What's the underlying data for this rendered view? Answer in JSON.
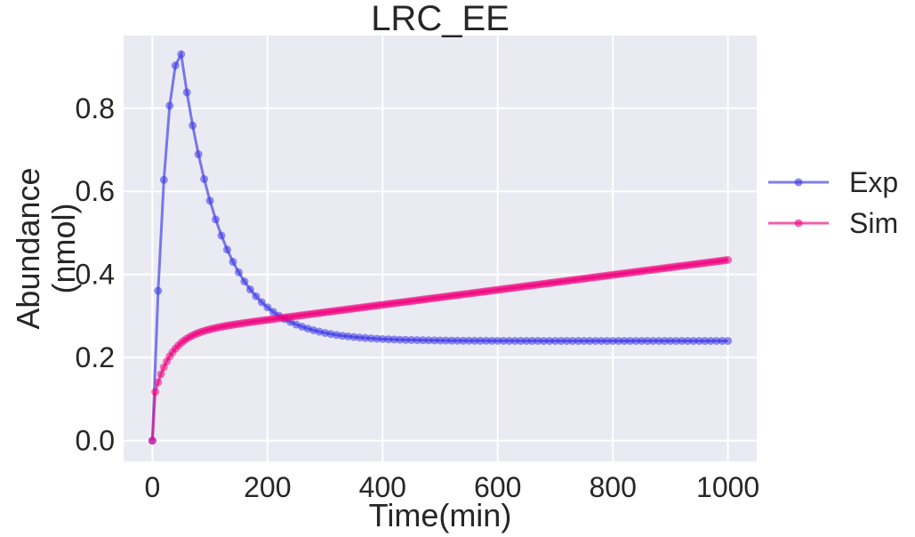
{
  "chart_data": {
    "type": "line",
    "title": "LRC_EE",
    "xlabel": "Time(min)",
    "ylabel": "Abundance\n(nmol)",
    "xlim": [
      -50,
      1050
    ],
    "ylim": [
      -0.05,
      0.975
    ],
    "xticks": [
      0,
      200,
      400,
      600,
      800,
      1000
    ],
    "yticks": [
      0.0,
      0.2,
      0.4,
      0.6,
      0.8
    ],
    "grid": true,
    "legend_position": "right",
    "series": [
      {
        "name": "Exp",
        "color": "#3a37e6",
        "marker": "circle",
        "model": {
          "kind": "pulse-decay",
          "t_step": 10,
          "t_max": 1000,
          "peak_time": 50,
          "peak_value": 0.93,
          "baseline": 0.24,
          "decay_rate": 0.0143
        }
      },
      {
        "name": "Sim",
        "color": "#f0047f",
        "marker": "circle",
        "model": {
          "kind": "rise-linear",
          "t_step": 5,
          "t_max": 1000,
          "start_value": 0.09,
          "saturation": 0.165,
          "rise_rate": 0.035,
          "slope": 0.00018
        }
      }
    ]
  }
}
